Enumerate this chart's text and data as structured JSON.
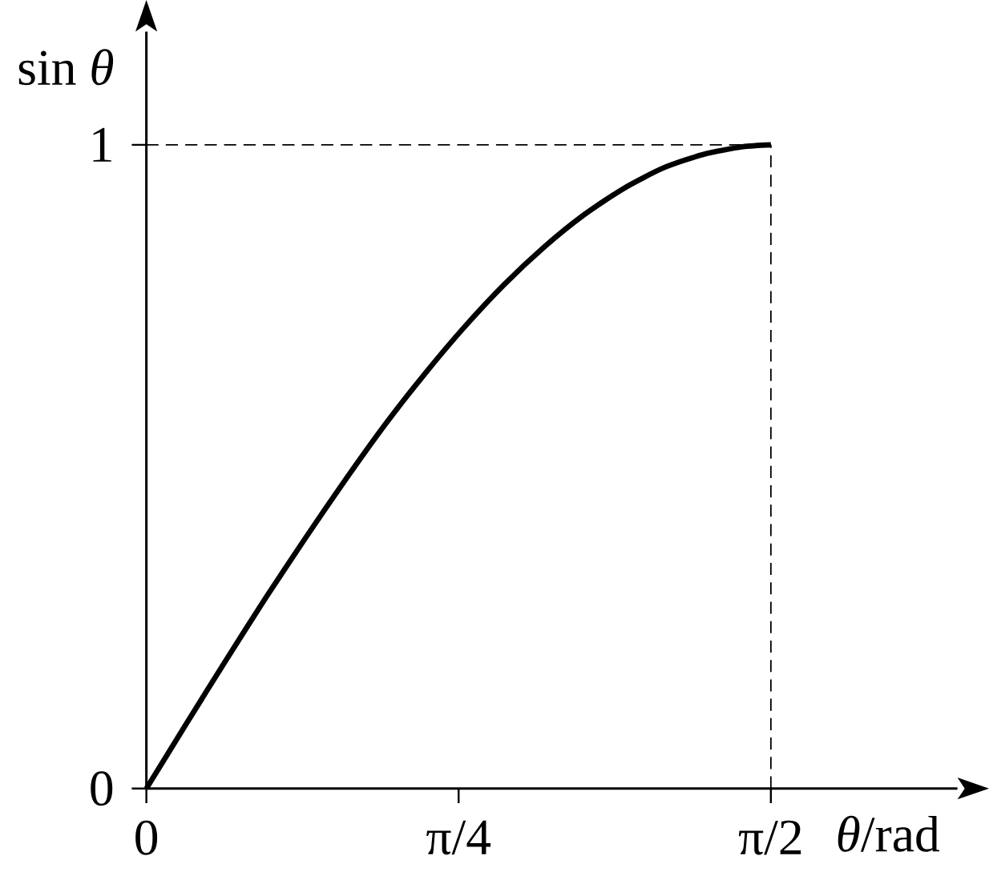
{
  "chart_data": {
    "type": "line",
    "xlabel": "*θ*/rad",
    "ylabel": "sin *θ*",
    "x": [
      0,
      0.1,
      0.2,
      0.3,
      0.4,
      0.5,
      0.6,
      0.7,
      0.8,
      0.9,
      1.0,
      1.1,
      1.2,
      1.3,
      1.4,
      1.5,
      1.5708
    ],
    "series": [
      {
        "color": "#000000",
        "values": [
          0,
          0.1,
          0.199,
          0.296,
          0.389,
          0.479,
          0.565,
          0.644,
          0.717,
          0.783,
          0.841,
          0.891,
          0.932,
          0.964,
          0.985,
          0.997,
          1
        ]
      }
    ],
    "xlim": [
      0,
      2.04
    ],
    "ylim": [
      0,
      1.176
    ],
    "xticks": [
      0,
      {
        "value": 0.7854,
        "label": "π/4"
      },
      {
        "value": 1.5708,
        "label": "π/2"
      }
    ],
    "yticks": [
      0,
      1
    ],
    "ref_lines": [
      {
        "axis": "y",
        "value": 1,
        "line_style": "dashed"
      },
      {
        "axis": "x",
        "value": 1.5708,
        "line_style": "dashed"
      }
    ]
  }
}
